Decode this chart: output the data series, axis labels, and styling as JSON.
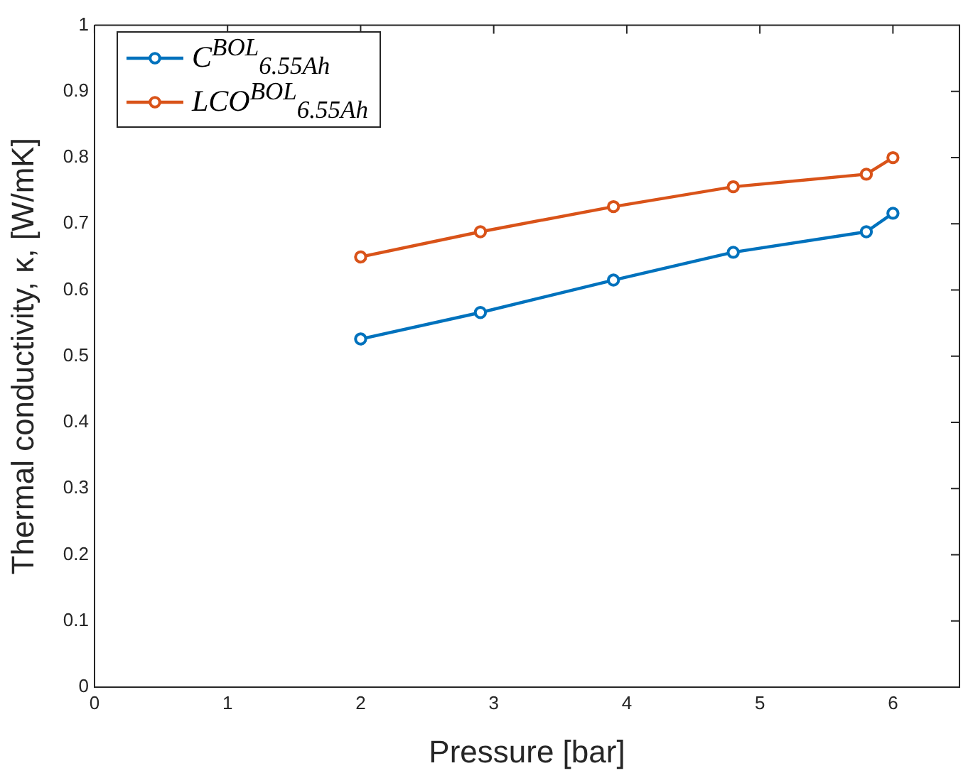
{
  "chart_data": {
    "type": "line",
    "xlabel": "Pressure [bar]",
    "ylabel": "Thermal conductivity, κ, [W/mK]",
    "x": [
      2,
      2.9,
      3.9,
      4.8,
      5.8,
      6
    ],
    "series": [
      {
        "name": "C$^{BOL}$$_{6.55Ah}$",
        "color": "#0072bd",
        "values": [
          0.526,
          0.566,
          0.615,
          0.657,
          0.688,
          0.716
        ]
      },
      {
        "name": "LCO$^{BOL}$$_{6.55Ah}$",
        "color": "#d95319",
        "values": [
          0.65,
          0.688,
          0.726,
          0.756,
          0.775,
          0.8
        ]
      }
    ],
    "xlim": [
      0,
      6.5
    ],
    "xticks": [
      0,
      1,
      2,
      3,
      4,
      5,
      6
    ],
    "ylim": [
      0,
      1
    ],
    "yticks": [
      0,
      0.1,
      0.2,
      0.3,
      0.4,
      0.5,
      0.6,
      0.7,
      0.8,
      0.9,
      1
    ],
    "grid": false,
    "legend": "top left",
    "marker": "circle",
    "line_style": "solid"
  }
}
